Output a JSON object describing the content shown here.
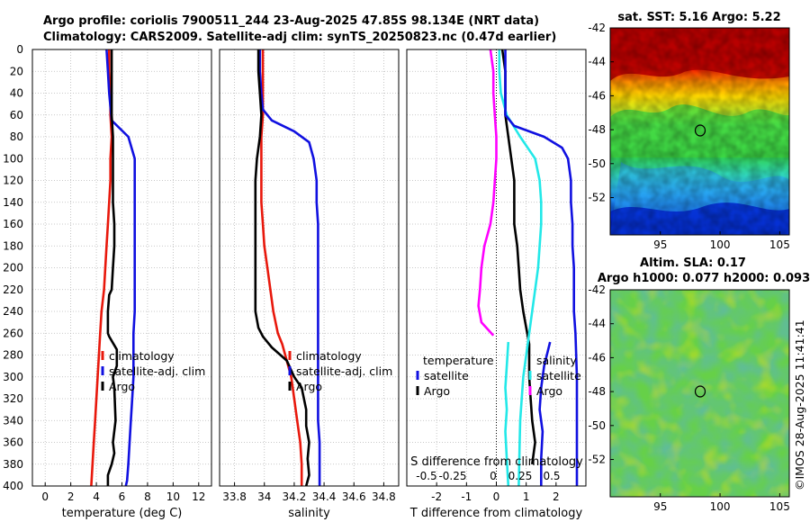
{
  "header": {
    "line1": "Argo profile: coriolis 7900511_244 23-Aug-2025 47.85S 98.134E (NRT data)",
    "line2": "Climatology: CARS2009. Satellite-adj clim: synTS_20250823.nc (0.47d earlier)"
  },
  "colors": {
    "climatology": "#e8180c",
    "satellite": "#1010e0",
    "argo": "#000000",
    "t_sat_diff": "#ff00ff",
    "s_sat_diff": "#22e8e8"
  },
  "map_titles": {
    "sst": "sat. SST: 5.16 Argo: 5.22",
    "sla1": "Altim. SLA: 0.17",
    "sla2": "Argo h1000: 0.077 h2000: 0.093"
  },
  "footer": {
    "copyright": "©IMOS 28-Aug-2025 11:41:41"
  },
  "chart_data": [
    {
      "type": "line",
      "id": "temperature",
      "xlabel": "temperature (deg C)",
      "ylabel": "",
      "xlim": [
        -1,
        13
      ],
      "ylim": [
        0,
        400
      ],
      "x_ticks": [
        "0",
        "2",
        "4",
        "6",
        "8",
        "10",
        "12"
      ],
      "y_ticks": [
        "0",
        "20",
        "40",
        "60",
        "80",
        "100",
        "120",
        "140",
        "160",
        "180",
        "200",
        "220",
        "240",
        "260",
        "280",
        "300",
        "320",
        "340",
        "360",
        "380",
        "400"
      ],
      "legend": [
        "climatology",
        "satellite-adj. clim",
        "Argo"
      ],
      "series": [
        {
          "name": "climatology",
          "x": [
            5.0,
            5.0,
            5.1,
            5.1,
            5.2,
            5.1,
            5.1,
            5.0,
            4.9,
            4.8,
            4.7,
            4.6,
            4.4,
            4.3,
            4.2,
            4.1,
            4.0,
            3.9,
            3.8,
            3.7,
            3.6
          ],
          "y": [
            0,
            20,
            40,
            60,
            80,
            100,
            120,
            140,
            160,
            180,
            200,
            220,
            240,
            260,
            280,
            300,
            320,
            340,
            360,
            380,
            400
          ]
        },
        {
          "name": "satellite-adj. clim",
          "x": [
            4.8,
            4.9,
            5.0,
            5.2,
            6.5,
            7.0,
            7.0,
            7.0,
            7.0,
            7.0,
            7.0,
            7.0,
            7.0,
            6.9,
            6.9,
            6.9,
            6.8,
            6.7,
            6.6,
            6.5,
            6.4,
            6.3
          ],
          "y": [
            0,
            20,
            40,
            65,
            80,
            100,
            120,
            140,
            160,
            180,
            200,
            220,
            240,
            260,
            280,
            300,
            320,
            340,
            360,
            380,
            395,
            400
          ]
        },
        {
          "name": "Argo",
          "x": [
            5.2,
            5.2,
            5.2,
            5.2,
            5.3,
            5.3,
            5.3,
            5.3,
            5.4,
            5.4,
            5.3,
            5.2,
            5.0,
            4.9,
            4.9,
            5.0,
            5.6,
            5.6,
            5.3,
            5.4,
            5.5,
            5.3,
            5.4,
            5.2,
            4.9,
            4.9
          ],
          "y": [
            0,
            20,
            40,
            60,
            80,
            100,
            120,
            140,
            160,
            180,
            200,
            220,
            225,
            240,
            260,
            263,
            275,
            290,
            300,
            310,
            340,
            360,
            370,
            380,
            390,
            400
          ]
        }
      ]
    },
    {
      "type": "line",
      "id": "salinity",
      "xlabel": "salinity",
      "ylabel": "",
      "xlim": [
        33.7,
        34.9
      ],
      "ylim": [
        0,
        400
      ],
      "x_ticks": [
        "33.8",
        "34",
        "34.2",
        "34.4",
        "34.6",
        "34.8"
      ],
      "legend": [
        "climatology",
        "satellite-adj. clim",
        "Argo"
      ],
      "series": [
        {
          "name": "climatology",
          "x": [
            33.99,
            33.99,
            33.99,
            33.99,
            33.98,
            33.98,
            33.98,
            33.98,
            33.99,
            34.0,
            34.02,
            34.04,
            34.06,
            34.09,
            34.12,
            34.15,
            34.18,
            34.2,
            34.22,
            34.24,
            34.25,
            34.25
          ],
          "y": [
            0,
            20,
            40,
            60,
            80,
            100,
            120,
            140,
            160,
            180,
            200,
            220,
            240,
            260,
            270,
            285,
            300,
            320,
            340,
            360,
            380,
            400
          ]
        },
        {
          "name": "satellite-adj. clim",
          "x": [
            33.97,
            33.97,
            33.98,
            33.99,
            34.05,
            34.2,
            34.3,
            34.33,
            34.35,
            34.35,
            34.36,
            34.36,
            34.36,
            34.36,
            34.36,
            34.36,
            34.36,
            34.36,
            34.36,
            34.36,
            34.37,
            34.37,
            34.37
          ],
          "y": [
            0,
            20,
            40,
            55,
            65,
            75,
            85,
            100,
            120,
            140,
            160,
            180,
            200,
            220,
            240,
            260,
            280,
            300,
            320,
            340,
            360,
            380,
            400
          ]
        },
        {
          "name": "Argo",
          "x": [
            33.96,
            33.96,
            33.97,
            33.98,
            33.97,
            33.95,
            33.94,
            33.94,
            33.94,
            33.94,
            33.94,
            33.94,
            33.94,
            33.96,
            33.99,
            34.05,
            34.15,
            34.2,
            34.25,
            34.28,
            34.28,
            34.3,
            34.29,
            34.3,
            34.28
          ],
          "y": [
            0,
            20,
            40,
            60,
            80,
            100,
            120,
            140,
            160,
            180,
            200,
            220,
            240,
            255,
            263,
            273,
            285,
            300,
            310,
            330,
            345,
            360,
            375,
            390,
            400
          ]
        }
      ]
    },
    {
      "type": "line",
      "id": "differences",
      "xlabel": "T difference from climatology",
      "x2label": "S difference from climatology",
      "ylabel": "",
      "xlim": [
        -3,
        3
      ],
      "ylim": [
        0,
        400
      ],
      "x_ticks": [
        "-2",
        "-1",
        "0",
        "1",
        "2"
      ],
      "x2_ticks": [
        "-0.5",
        "-0.25",
        "0",
        "0.25",
        "0.5"
      ],
      "legend_left_title": "temperature",
      "legend_left": [
        "satellite",
        "Argo"
      ],
      "legend_right_title": "salinity",
      "legend_right": [
        "satellite",
        "Argo"
      ],
      "series": [
        {
          "name": "T satellite",
          "x": [
            -0.2,
            -0.1,
            -0.1,
            -0.05,
            0.0,
            0.0,
            -0.1,
            -0.2,
            -0.4,
            -0.5,
            -0.55,
            -0.6,
            -0.5,
            -0.1
          ],
          "y": [
            0,
            20,
            40,
            60,
            80,
            100,
            140,
            160,
            180,
            200,
            220,
            235,
            250,
            262
          ]
        },
        {
          "name": "T Argo",
          "x": [
            0.2,
            0.3,
            0.3,
            0.3,
            0.4,
            0.5,
            0.6,
            0.6,
            0.6,
            0.7,
            0.75,
            0.8,
            0.9,
            1.0,
            1.05,
            1.1,
            1.1,
            1.15,
            1.2,
            1.3,
            1.2
          ],
          "y": [
            0,
            20,
            40,
            60,
            80,
            100,
            120,
            140,
            160,
            180,
            200,
            220,
            240,
            255,
            262,
            270,
            300,
            320,
            340,
            360,
            380
          ]
        },
        {
          "name": "S satellite",
          "x": [
            0.1,
            0.1,
            0.15,
            0.35,
            0.8,
            1.3,
            1.45,
            1.5,
            1.5,
            1.45,
            1.4,
            1.3,
            1.2,
            1.1,
            1.0,
            0.9,
            0.85,
            0.8,
            0.78,
            0.75
          ],
          "y": [
            0,
            20,
            40,
            60,
            80,
            100,
            120,
            140,
            160,
            180,
            200,
            220,
            240,
            260,
            280,
            300,
            320,
            340,
            360,
            400
          ]
        },
        {
          "name": "S Argo",
          "x": [
            0.3,
            0.3,
            0.3,
            0.3,
            0.6,
            1.6,
            2.2,
            2.4,
            2.5,
            2.5,
            2.55,
            2.55,
            2.6,
            2.6,
            2.6,
            2.65,
            2.7,
            2.7,
            2.7,
            2.7
          ],
          "y": [
            0,
            20,
            40,
            60,
            70,
            80,
            90,
            100,
            120,
            140,
            160,
            180,
            200,
            220,
            240,
            260,
            300,
            340,
            380,
            400
          ]
        },
        {
          "name": "S satellite",
          "x": [
            0.4,
            0.35,
            0.3,
            0.35,
            0.3,
            0.35,
            0.4
          ],
          "y": [
            268,
            290,
            310,
            330,
            350,
            375,
            400
          ]
        },
        {
          "name": "S Argo",
          "x": [
            1.8,
            1.6,
            1.5,
            1.45,
            1.55,
            1.5,
            1.5
          ],
          "y": [
            268,
            290,
            310,
            330,
            350,
            375,
            400
          ]
        }
      ]
    },
    {
      "type": "heatmap",
      "id": "sst_map",
      "title": "sat. SST: 5.16 Argo: 5.22",
      "x_ticks": [
        "95",
        "100",
        "105"
      ],
      "y_ticks": [
        "-42",
        "-44",
        "-46",
        "-48",
        "-50",
        "-52"
      ],
      "xlim": [
        90.8,
        105.8
      ],
      "ylim": [
        -54.2,
        -42
      ]
    },
    {
      "type": "heatmap",
      "id": "sla_map",
      "title": "Altim. SLA: 0.17",
      "subtitle": "Argo h1000: 0.077 h2000: 0.093",
      "x_ticks": [
        "95",
        "100",
        "105"
      ],
      "y_ticks": [
        "-42",
        "-44",
        "-46",
        "-48",
        "-50",
        "-52"
      ],
      "xlim": [
        90.8,
        105.8
      ],
      "ylim": [
        -54.2,
        -42
      ]
    }
  ]
}
